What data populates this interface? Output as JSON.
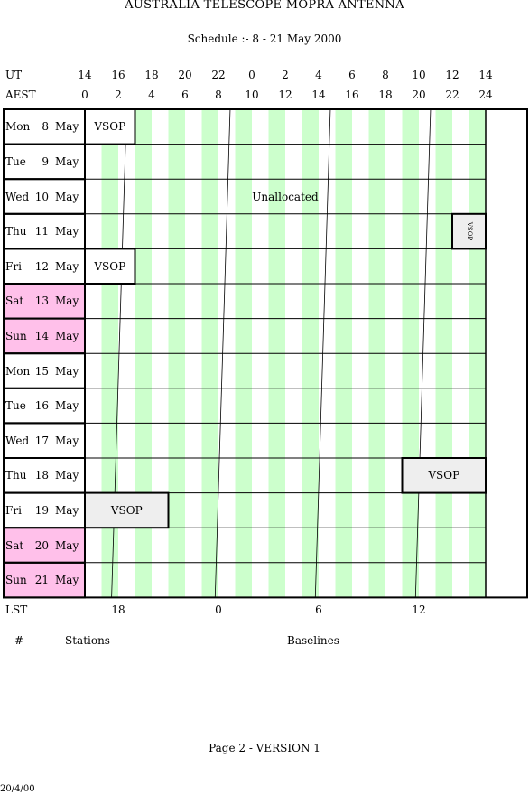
{
  "title": "AUSTRALIA TELESCOPE MOPRA ANTENNA",
  "subtitle": "Schedule :- 8 - 21 May 2000",
  "ut_label": "UT",
  "aest_label": "AEST",
  "ut_ticks": [
    "14",
    "16",
    "18",
    "20",
    "22",
    "0",
    "2",
    "4",
    "6",
    "8",
    "10",
    "12",
    "14"
  ],
  "aest_ticks": [
    "0",
    "2",
    "4",
    "6",
    "8",
    "10",
    "12",
    "14",
    "16",
    "18",
    "20",
    "22",
    "24"
  ],
  "days": [
    {
      "dow": "Mon",
      "day": "8",
      "month": "May",
      "weekend": false
    },
    {
      "dow": "Tue",
      "day": "9",
      "month": "May",
      "weekend": false
    },
    {
      "dow": "Wed",
      "day": "10",
      "month": "May",
      "weekend": false
    },
    {
      "dow": "Thu",
      "day": "11",
      "month": "May",
      "weekend": false
    },
    {
      "dow": "Fri",
      "day": "12",
      "month": "May",
      "weekend": false
    },
    {
      "dow": "Sat",
      "day": "13",
      "month": "May",
      "weekend": true
    },
    {
      "dow": "Sun",
      "day": "14",
      "month": "May",
      "weekend": true
    },
    {
      "dow": "Mon",
      "day": "15",
      "month": "May",
      "weekend": false
    },
    {
      "dow": "Tue",
      "day": "16",
      "month": "May",
      "weekend": false
    },
    {
      "dow": "Wed",
      "day": "17",
      "month": "May",
      "weekend": false
    },
    {
      "dow": "Thu",
      "day": "18",
      "month": "May",
      "weekend": false
    },
    {
      "dow": "Fri",
      "day": "19",
      "month": "May",
      "weekend": false
    },
    {
      "dow": "Sat",
      "day": "20",
      "month": "May",
      "weekend": true
    },
    {
      "dow": "Sun",
      "day": "21",
      "month": "May",
      "weekend": true
    }
  ],
  "bookings": [
    {
      "day": 0,
      "start_aest": 0,
      "end_aest": 3,
      "label": "VSOP",
      "vertical": false,
      "shaded": false
    },
    {
      "day": 3,
      "start_aest": 22,
      "end_aest": 24,
      "label": "VSOP",
      "vertical": true,
      "shaded": true
    },
    {
      "day": 4,
      "start_aest": 0,
      "end_aest": 3,
      "label": "VSOP",
      "vertical": false,
      "shaded": false
    },
    {
      "day": 10,
      "start_aest": 19,
      "end_aest": 24,
      "label": "VSOP",
      "vertical": false,
      "shaded": true
    },
    {
      "day": 11,
      "start_aest": 0,
      "end_aest": 5,
      "label": "VSOP",
      "vertical": false,
      "shaded": true
    }
  ],
  "unallocated": {
    "day": 2,
    "label": "Unallocated",
    "center_aest": 12
  },
  "lst_label": "LST",
  "lst_ticks": [
    {
      "label": "18",
      "aest": 2
    },
    {
      "label": "0",
      "aest": 8
    },
    {
      "label": "6",
      "aest": 14
    },
    {
      "label": "12",
      "aest": 20
    }
  ],
  "lst_lines_aest": [
    2.5,
    8.7,
    14.7,
    20.7
  ],
  "lst_drift_aest": -0.9,
  "footer": {
    "hash": "#",
    "stations": "Stations",
    "baselines": "Baselines",
    "page": "Page 2 - VERSION 1",
    "date": "20/4/00"
  },
  "colors": {
    "stripe": "#ccffcc",
    "weekend": "#ffc0ea",
    "booking_shade": "#eeeeee",
    "grid_line": "#000000"
  }
}
